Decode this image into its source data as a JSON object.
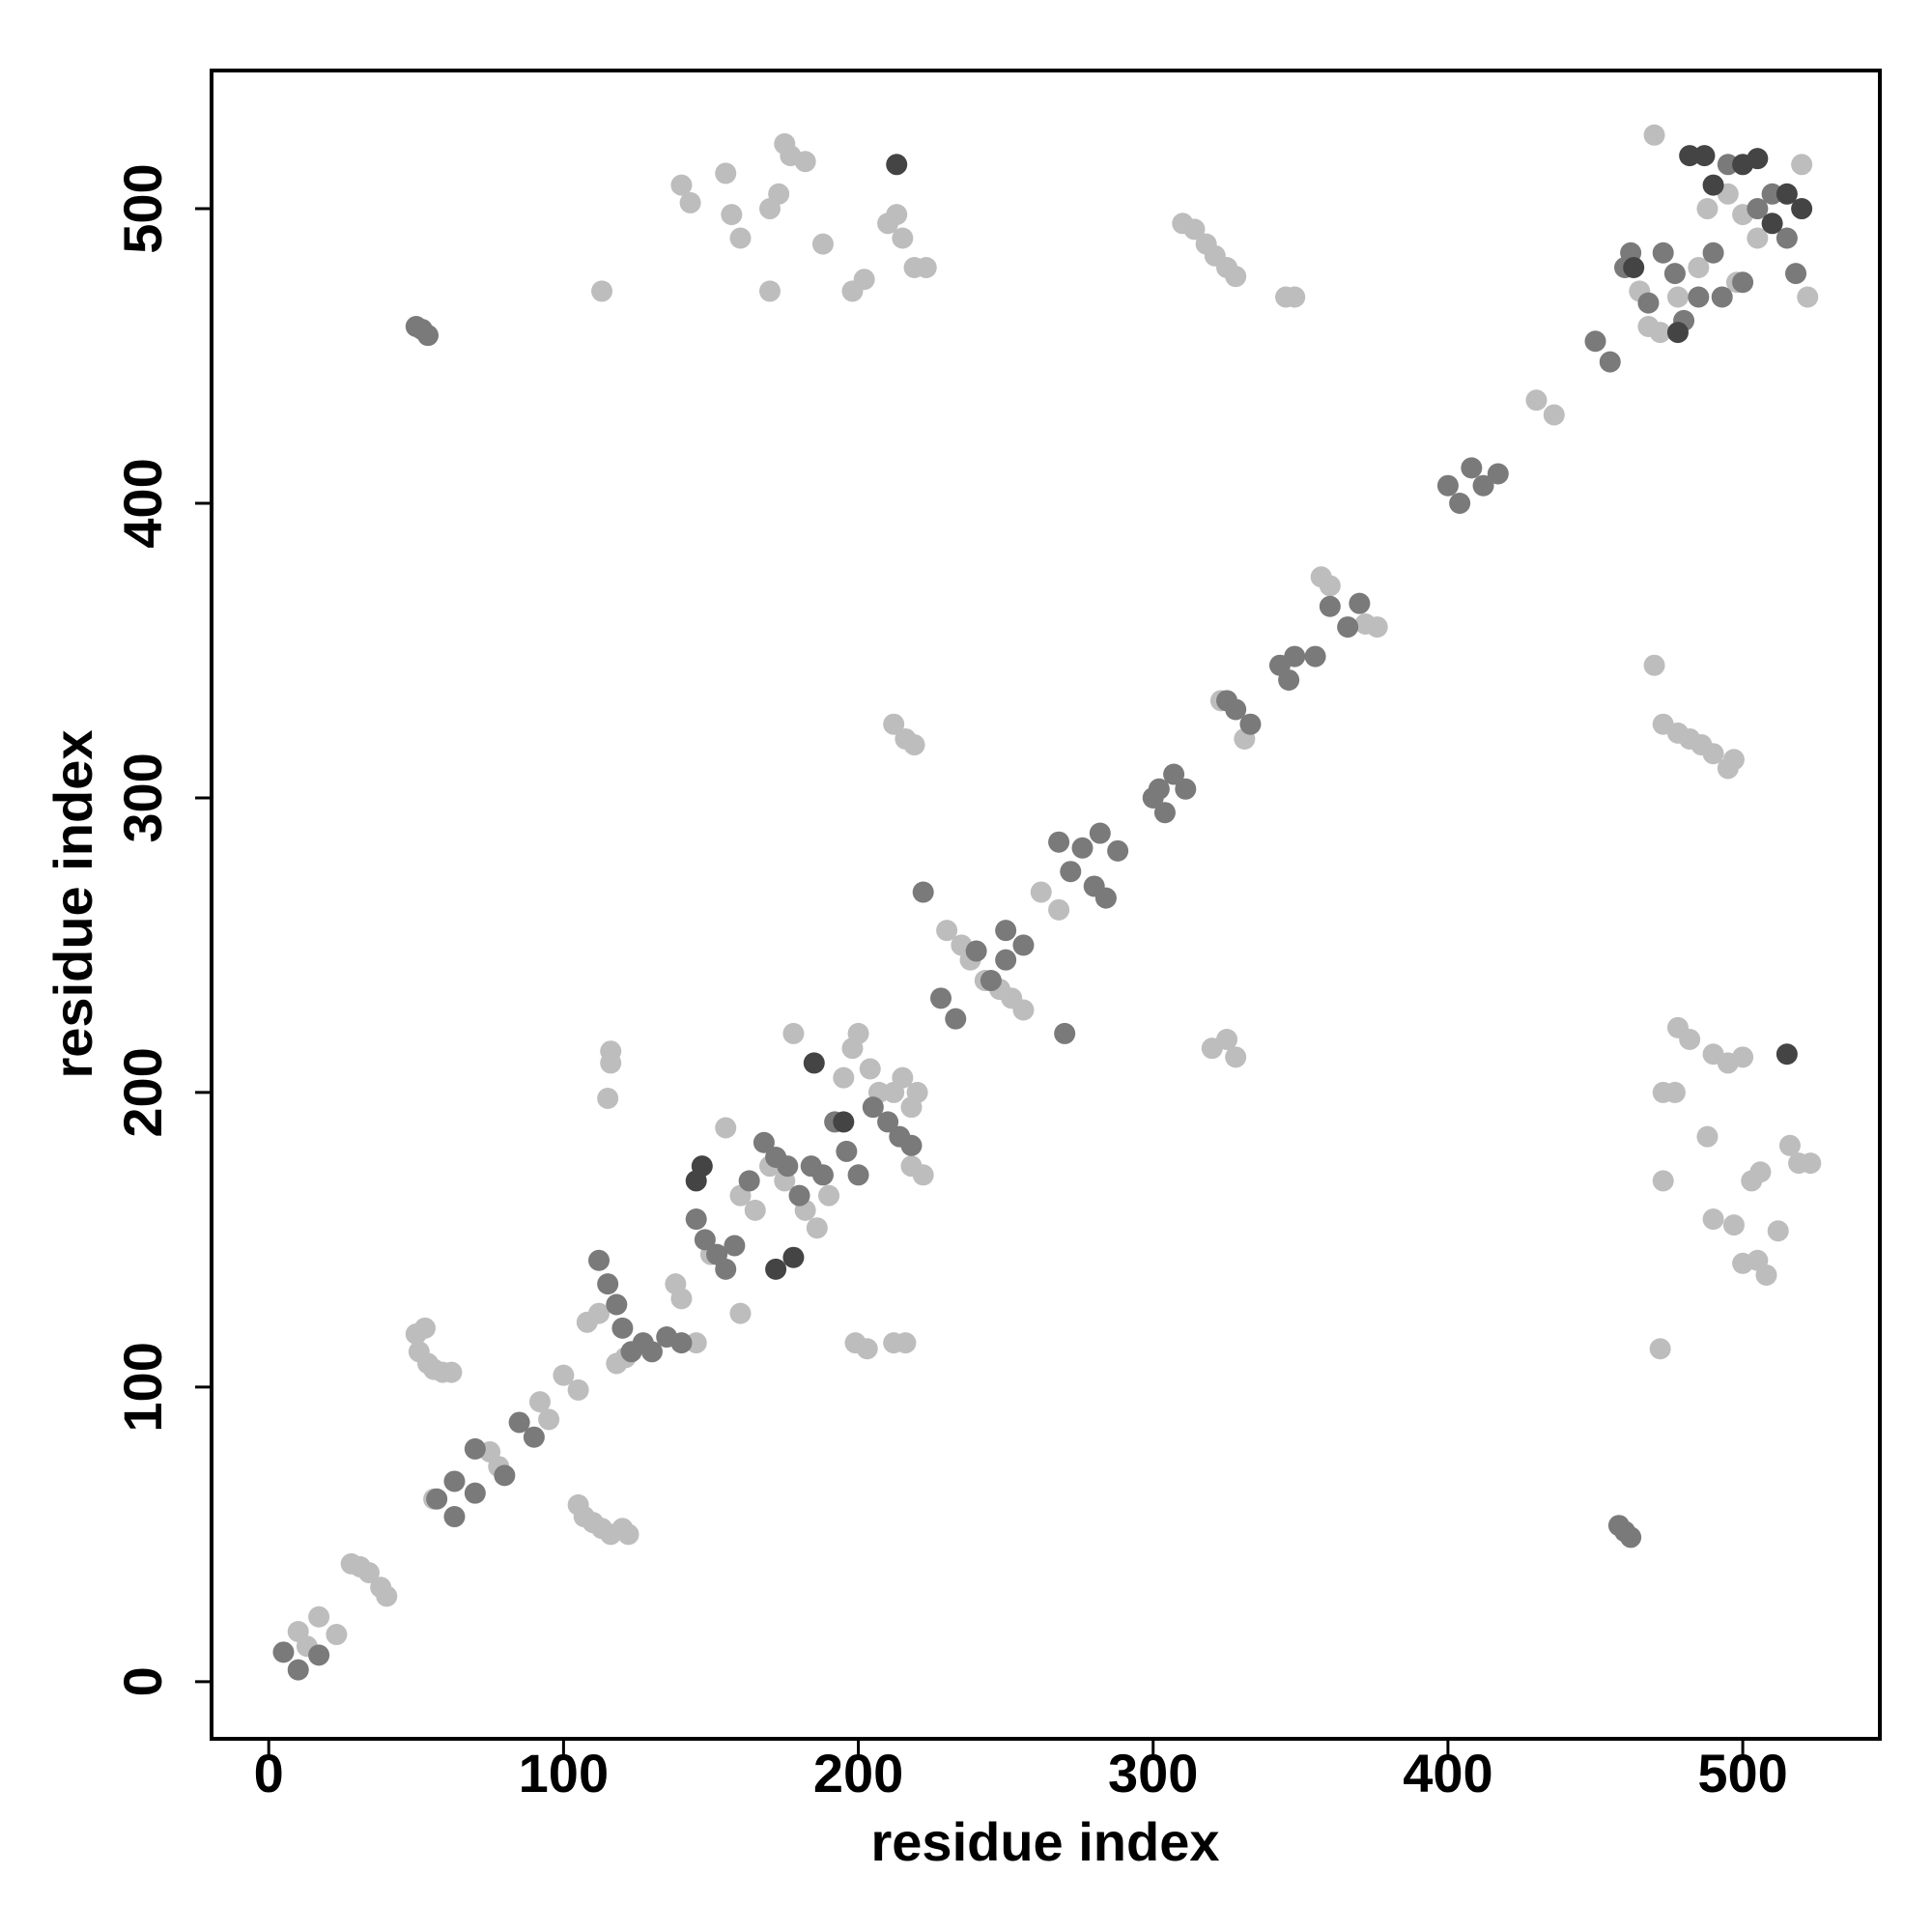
{
  "chart_data": {
    "type": "scatter",
    "xlabel": "residue index",
    "ylabel": "residue index",
    "xlim": [
      -19.4,
      546.5
    ],
    "ylim": [
      -19.4,
      546.9
    ],
    "xticks": [
      0,
      100,
      200,
      300,
      400,
      500
    ],
    "yticks": [
      0,
      100,
      200,
      300,
      400,
      500
    ],
    "series": [
      {
        "color": "#bdbdbd",
        "x": [
          10,
          13,
          17,
          23,
          28,
          31,
          34,
          38,
          40,
          56,
          75,
          78,
          92,
          95,
          100,
          105,
          50,
          53,
          51,
          54,
          56,
          59,
          62,
          105,
          107,
          110,
          113,
          116,
          120,
          122,
          108,
          112,
          118,
          121,
          138,
          140,
          150,
          155,
          160,
          165,
          170,
          175,
          178,
          182,
          186,
          190,
          195,
          198,
          200,
          204,
          207,
          212,
          215,
          218,
          220,
          218,
          222,
          160,
          145,
          115,
          116,
          116,
          199,
          203,
          212,
          216,
          230,
          235,
          238,
          243,
          248,
          252,
          256,
          262,
          268,
          320,
          325,
          328,
          212,
          216,
          219,
          331,
          323,
          357,
          360,
          372,
          376,
          430,
          436,
          465,
          468,
          472,
          478,
          485,
          488,
          495,
          500,
          505,
          498,
          470,
          520,
          522,
          310,
          314,
          318,
          321,
          325,
          328,
          345,
          348,
          470,
          473,
          478,
          482,
          486,
          490,
          495,
          497,
          140,
          143,
          155,
          157,
          160,
          170,
          173,
          175,
          177,
          182,
          188,
          170,
          198,
          202,
          210,
          213,
          215,
          219,
          223,
          113,
          473,
          477,
          478,
          482,
          490,
          495,
          500,
          473,
          472,
          488,
          490,
          497,
          500,
          505,
          508,
          503,
          506,
          512,
          516,
          519,
          523
        ],
        "y": [
          17,
          12,
          22,
          16,
          40,
          39,
          37,
          32,
          29,
          62,
          78,
          73,
          95,
          89,
          104,
          99,
          118,
          120,
          112,
          108,
          106,
          105,
          105,
          60,
          56,
          54,
          52,
          50,
          52,
          50,
          122,
          125,
          108,
          110,
          135,
          130,
          145,
          188,
          165,
          160,
          175,
          170,
          220,
          160,
          154,
          165,
          205,
          215,
          220,
          208,
          200,
          200,
          205,
          195,
          200,
          175,
          172,
          125,
          115,
          198,
          210,
          214,
          115,
          113,
          115,
          115,
          255,
          250,
          245,
          238,
          235,
          232,
          228,
          268,
          262,
          215,
          218,
          212,
          325,
          320,
          318,
          320,
          333,
          375,
          372,
          359,
          358,
          435,
          430,
          472,
          460,
          458,
          470,
          480,
          500,
          505,
          498,
          490,
          475,
          525,
          515,
          470,
          495,
          493,
          488,
          484,
          480,
          477,
          470,
          470,
          345,
          325,
          322,
          320,
          318,
          315,
          310,
          313,
          508,
          502,
          512,
          498,
          490,
          500,
          505,
          522,
          518,
          516,
          488,
          472,
          472,
          476,
          495,
          498,
          490,
          480,
          480,
          472,
          200,
          200,
          222,
          218,
          213,
          210,
          212,
          170,
          113,
          185,
          157,
          155,
          142,
          143,
          138,
          170,
          173,
          153,
          182,
          176,
          176
        ]
      },
      {
        "color": "#7a7a7a",
        "x": [
          5,
          10,
          17,
          57,
          63,
          63,
          70,
          70,
          80,
          85,
          90,
          50,
          52,
          54,
          458,
          460,
          462,
          112,
          115,
          118,
          120,
          123,
          127,
          130,
          135,
          140,
          145,
          148,
          152,
          155,
          158,
          163,
          168,
          172,
          176,
          180,
          184,
          188,
          192,
          196,
          200,
          205,
          210,
          214,
          218,
          222,
          228,
          233,
          240,
          245,
          250,
          250,
          256,
          270,
          268,
          272,
          276,
          280,
          284,
          288,
          282,
          300,
          302,
          307,
          311,
          304,
          325,
          328,
          333,
          343,
          348,
          355,
          346,
          360,
          366,
          370,
          400,
          404,
          408,
          412,
          417,
          450,
          455,
          460,
          462,
          468,
          473,
          477,
          480,
          485,
          490,
          493,
          495,
          500,
          505,
          510,
          515,
          518
        ],
        "y": [
          10,
          4,
          9,
          62,
          68,
          56,
          64,
          79,
          70,
          88,
          83,
          460,
          459,
          457,
          53,
          51,
          49,
          143,
          135,
          128,
          120,
          112,
          115,
          112,
          117,
          115,
          157,
          150,
          145,
          140,
          148,
          170,
          183,
          178,
          175,
          165,
          175,
          172,
          190,
          180,
          172,
          195,
          190,
          185,
          182,
          268,
          232,
          225,
          248,
          238,
          245,
          255,
          250,
          220,
          285,
          275,
          283,
          270,
          266,
          282,
          288,
          300,
          303,
          308,
          303,
          295,
          333,
          330,
          325,
          345,
          348,
          348,
          340,
          365,
          358,
          366,
          406,
          400,
          412,
          406,
          410,
          455,
          448,
          480,
          485,
          468,
          485,
          478,
          462,
          470,
          485,
          470,
          515,
          475,
          500,
          505,
          490,
          478
        ]
      },
      {
        "color": "#444444",
        "x": [
          145,
          147,
          172,
          178,
          185,
          195,
          213,
          515,
          463,
          478,
          490,
          500,
          505,
          510,
          515,
          520,
          482,
          487
        ],
        "y": [
          170,
          175,
          140,
          144,
          210,
          190,
          515,
          213,
          480,
          458,
          508,
          515,
          517,
          495,
          505,
          500,
          518,
          518
        ]
      }
    ]
  }
}
